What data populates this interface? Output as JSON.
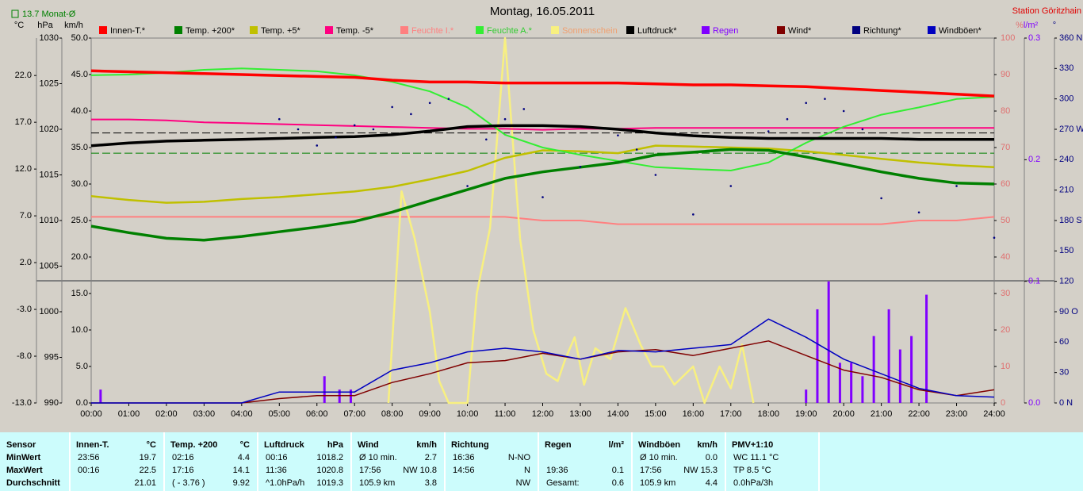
{
  "chart_data": {
    "type": "line",
    "title": "Montag, 16.05.2011",
    "station": "Station Göritzhain",
    "monthly_mean": {
      "value": 13.7,
      "label": "13.7 Monat-Ø",
      "color": "#008000"
    },
    "pressure_reference": 1019.6,
    "x": [
      0,
      1,
      2,
      3,
      4,
      5,
      6,
      7,
      8,
      9,
      10,
      11,
      12,
      13,
      14,
      15,
      16,
      17,
      18,
      19,
      20,
      21,
      22,
      23,
      24
    ],
    "xlim": [
      0,
      24
    ],
    "xticks": [
      {
        "value": 0,
        "label": "00:00"
      },
      {
        "value": 1,
        "label": "01:00"
      },
      {
        "value": 2,
        "label": "02:00"
      },
      {
        "value": 3,
        "label": "03:00"
      },
      {
        "value": 4,
        "label": "04:00"
      },
      {
        "value": 5,
        "label": "05:00"
      },
      {
        "value": 6,
        "label": "06:00"
      },
      {
        "value": 7,
        "label": "07:00"
      },
      {
        "value": 8,
        "label": "08:00"
      },
      {
        "value": 9,
        "label": "09:00"
      },
      {
        "value": 10,
        "label": "10:00"
      },
      {
        "value": 11,
        "label": "11:00"
      },
      {
        "value": 12,
        "label": "12:00"
      },
      {
        "value": 13,
        "label": "13:00"
      },
      {
        "value": 14,
        "label": "14:00"
      },
      {
        "value": 15,
        "label": "15:00"
      },
      {
        "value": 16,
        "label": "16:00"
      },
      {
        "value": 17,
        "label": "17:00"
      },
      {
        "value": 18,
        "label": "18:00"
      },
      {
        "value": 19,
        "label": "19:00"
      },
      {
        "value": 20,
        "label": "20:00"
      },
      {
        "value": 21,
        "label": "21:00"
      },
      {
        "value": 22,
        "label": "22:00"
      },
      {
        "value": 23,
        "label": "23:00"
      },
      {
        "value": 24,
        "label": "24:00"
      }
    ],
    "ylabel": "°C",
    "ylim": [
      -13,
      26
    ],
    "yticks": [
      {
        "value": 22,
        "label": "22.0"
      },
      {
        "value": 17,
        "label": "17.0"
      },
      {
        "value": 12,
        "label": "12.0"
      },
      {
        "value": 7,
        "label": "7.0"
      },
      {
        "value": 2,
        "label": "2.0"
      },
      {
        "value": -3,
        "label": "-3.0"
      },
      {
        "value": -8,
        "label": "-8.0"
      },
      {
        "value": -13,
        "label": "-13.0"
      }
    ],
    "y2label": "hPa",
    "y2lim": [
      990,
      1030
    ],
    "y2ticks": [
      1030,
      1025,
      1020,
      1015,
      1010,
      1005,
      1000,
      995,
      990
    ],
    "y3label": "km/h",
    "y3lim": [
      0,
      50
    ],
    "y3ticks": [
      {
        "value": 50,
        "label": "50.0"
      },
      {
        "value": 45,
        "label": "45.0"
      },
      {
        "value": 40,
        "label": "40.0"
      },
      {
        "value": 35,
        "label": "35.0"
      },
      {
        "value": 30,
        "label": "30.0"
      },
      {
        "value": 25,
        "label": "25.0"
      },
      {
        "value": 20,
        "label": "20.0"
      },
      {
        "value": 15,
        "label": "15.0"
      },
      {
        "value": 10,
        "label": "10.0"
      },
      {
        "value": 5,
        "label": "5.0"
      },
      {
        "value": 0,
        "label": "0.0"
      }
    ],
    "y4label": "%",
    "y4lim": [
      0,
      100
    ],
    "y4ticks": [
      100,
      90,
      80,
      70,
      60,
      50,
      40,
      30,
      20,
      10,
      0
    ],
    "y5label": "l/m²",
    "y5lim": [
      0,
      0.3
    ],
    "y5ticks": [
      0.3,
      0.2,
      0.1,
      {
        "value": 0,
        "label": "0.0"
      }
    ],
    "y6label": "°",
    "y6lim": [
      0,
      360
    ],
    "y6ticks": [
      {
        "value": 360,
        "label": "360 N"
      },
      330,
      300,
      {
        "value": 270,
        "label": "270 W"
      },
      240,
      210,
      {
        "value": 180,
        "label": "180 S"
      },
      150,
      120,
      {
        "value": 90,
        "label": "90 O"
      },
      60,
      30,
      {
        "value": 0,
        "label": "0 N"
      }
    ],
    "series": [
      {
        "name": "Innen-T.*",
        "color": "#ff0000",
        "axis": "y",
        "values": [
          22.5,
          22.4,
          22.3,
          22.2,
          22.1,
          22.0,
          21.9,
          21.8,
          21.5,
          21.3,
          21.3,
          21.2,
          21.2,
          21.2,
          21.2,
          21.1,
          21.0,
          21.0,
          20.9,
          20.8,
          20.6,
          20.4,
          20.2,
          20.0,
          19.8
        ]
      },
      {
        "name": "Temp. +200*",
        "color": "#008000",
        "axis": "y",
        "values": [
          5.9,
          5.2,
          4.6,
          4.4,
          4.8,
          5.3,
          5.8,
          6.4,
          7.4,
          8.6,
          9.8,
          11.0,
          11.7,
          12.2,
          12.7,
          13.5,
          13.8,
          14.1,
          14.0,
          13.3,
          12.5,
          11.7,
          11.0,
          10.5,
          10.4
        ]
      },
      {
        "name": "Temp. +5*",
        "color": "#c0c000",
        "axis": "y",
        "values": [
          9.1,
          8.7,
          8.4,
          8.5,
          8.8,
          9.0,
          9.3,
          9.6,
          10.1,
          10.9,
          11.8,
          13.2,
          14.0,
          13.9,
          13.7,
          14.5,
          14.4,
          14.3,
          14.2,
          13.9,
          13.5,
          13.1,
          12.7,
          12.4,
          12.2
        ]
      },
      {
        "name": "Temp. -5*",
        "color": "#ff0080",
        "axis": "y",
        "values": [
          17.3,
          17.3,
          17.2,
          17.0,
          16.9,
          16.8,
          16.7,
          16.6,
          16.5,
          16.4,
          16.3,
          16.3,
          16.2,
          16.3,
          16.3,
          16.4,
          16.4,
          16.4,
          16.4,
          16.4,
          16.4,
          16.4,
          16.4,
          16.4,
          16.4
        ]
      },
      {
        "name": "Feuchte I.*",
        "color": "#ff8080",
        "label_color": "#ff8080",
        "axis": "y4",
        "values": [
          51,
          51,
          51,
          51,
          51,
          51,
          51,
          51,
          51,
          51,
          51,
          51,
          50,
          50,
          49,
          49,
          49,
          49,
          49,
          49,
          49,
          49,
          50,
          50,
          51
        ]
      },
      {
        "name": "Feuchte A.*",
        "color": "#33ee33",
        "label_color": "#33cc33",
        "axis": "y4",
        "values": [
          89.8,
          90,
          90.5,
          91.3,
          91.7,
          91.3,
          90.9,
          89.8,
          88,
          85.4,
          81,
          73.5,
          70,
          68,
          66.3,
          64.6,
          64.1,
          63.7,
          65.9,
          71.3,
          75.7,
          79,
          81,
          83.3,
          83.9
        ]
      },
      {
        "name": "Sonnenschein",
        "color": "#f8f080",
        "label_color": "#f0a070",
        "axis": "y4",
        "type": "line",
        "x": [
          7.9,
          8.25,
          8.6,
          9.0,
          9.25,
          9.5,
          10.0,
          10.25,
          10.6,
          11.0,
          11.4,
          11.75,
          12.1,
          12.4,
          12.6,
          12.85,
          13.1,
          13.4,
          13.8,
          14.2,
          14.6,
          14.9,
          15.2,
          15.5,
          16.0,
          16.3,
          16.7,
          17.0,
          17.3,
          17.6
        ],
        "values": [
          0,
          58,
          45,
          25,
          6,
          0,
          0,
          30,
          48,
          100,
          45,
          20,
          8,
          6,
          12,
          18,
          5,
          15,
          12,
          26,
          16,
          10,
          10,
          5,
          10,
          0,
          10,
          4,
          16,
          0
        ]
      },
      {
        "name": "Luftdruck*",
        "color": "#000000",
        "axis": "y2",
        "values": [
          1018.2,
          1018.5,
          1018.7,
          1018.8,
          1018.9,
          1019.0,
          1019.1,
          1019.2,
          1019.4,
          1019.8,
          1020.3,
          1020.4,
          1020.4,
          1020.3,
          1020.0,
          1019.6,
          1019.3,
          1019.1,
          1019.0,
          1019.0,
          1019.0,
          1019.0,
          1018.9,
          1018.9,
          1018.9
        ]
      },
      {
        "name": "Regen",
        "color": "#8000ff",
        "label_color": "#8000ff",
        "axis": "y5",
        "type": "bar",
        "x": [
          0.25,
          6.2,
          6.6,
          6.9,
          19.0,
          19.3,
          19.6,
          19.9,
          20.2,
          20.5,
          20.8,
          21.2,
          21.5,
          21.8,
          22.2
        ],
        "values": [
          0.011,
          0.022,
          0.011,
          0.011,
          0.011,
          0.077,
          0.1,
          0.033,
          0.033,
          0.022,
          0.055,
          0.077,
          0.044,
          0.055,
          0.089
        ]
      },
      {
        "name": "Wind*",
        "color": "#800000",
        "axis": "y3",
        "values": [
          0,
          0,
          0,
          0,
          0,
          0.6,
          1.0,
          1.0,
          2.8,
          4.0,
          5.5,
          5.8,
          6.8,
          6.0,
          7.0,
          7.3,
          6.5,
          7.5,
          8.5,
          6.5,
          4.5,
          3.5,
          1.8,
          1.0,
          1.8
        ]
      },
      {
        "name": "Richtung*",
        "color": "#000080",
        "axis": "y6",
        "type": "scatter",
        "x": [
          5,
          5.5,
          6,
          6.5,
          7,
          7.5,
          8,
          8.5,
          9,
          9.5,
          10,
          10.5,
          11,
          11.5,
          12,
          13,
          14,
          14.5,
          15,
          16,
          17,
          18,
          18.5,
          19,
          19.5,
          20,
          20.5,
          21,
          22,
          23,
          24
        ],
        "values": [
          280,
          270,
          254,
          262,
          274,
          270,
          292,
          285,
          296,
          300,
          214,
          260,
          280,
          290,
          203,
          233,
          264,
          250,
          225,
          186,
          214,
          268,
          280,
          296,
          300,
          288,
          270,
          202,
          188,
          214,
          163
        ]
      },
      {
        "name": "Windböen*",
        "color": "#0000c0",
        "axis": "y3",
        "values": [
          0,
          0,
          0,
          0,
          0,
          1.5,
          1.5,
          1.5,
          4.5,
          5.5,
          7.0,
          7.5,
          7.0,
          6.0,
          7.2,
          7.0,
          7.5,
          8.0,
          11.5,
          9.0,
          6.0,
          4.0,
          2.0,
          1.0,
          0.8
        ]
      }
    ]
  },
  "table": {
    "columns": [
      {
        "header": "Sensor",
        "rows": [
          [
            "MinWert"
          ],
          [
            "MaxWert"
          ],
          [
            "Durchschnitt"
          ]
        ]
      },
      {
        "header": "Innen-T.",
        "unit": "°C",
        "rows": [
          [
            "23:56",
            "19.7"
          ],
          [
            "00:16",
            "22.5"
          ],
          [
            "21.01"
          ]
        ]
      },
      {
        "header": "Temp. +200",
        "unit": "°C",
        "rows": [
          [
            "02:16",
            "4.4"
          ],
          [
            "17:16",
            "14.1"
          ],
          [
            "( - 3.76 )",
            "9.92"
          ]
        ]
      },
      {
        "header": "Luftdruck",
        "unit": "hPa",
        "rows": [
          [
            "00:16",
            "1018.2"
          ],
          [
            "11:36",
            "1020.8"
          ],
          [
            "^1.0hPa/h",
            "1019.3"
          ]
        ]
      },
      {
        "header": "Wind",
        "unit": "km/h",
        "rows": [
          [
            "Ø 10 min.",
            "2.7"
          ],
          [
            "17:56",
            "NW 10.8"
          ],
          [
            "105.9 km",
            "3.8"
          ]
        ]
      },
      {
        "header": "Richtung",
        "rows": [
          [
            "16:36",
            "N-NO"
          ],
          [
            "14:56",
            "N"
          ],
          [
            "NW"
          ]
        ]
      },
      {
        "header": "Regen",
        "unit": "l/m²",
        "rows": [
          [],
          [
            "19:36",
            "0.1"
          ],
          [
            "Gesamt:",
            "0.6"
          ]
        ]
      },
      {
        "header": "Windböen",
        "unit": "km/h",
        "rows": [
          [
            "Ø 10 min.",
            "0.0"
          ],
          [
            "17:56",
            "NW 15.3"
          ],
          [
            "105.9 km",
            "4.4"
          ]
        ]
      },
      {
        "header": "PMV+1:10",
        "rows": [
          [
            "WC 11.1 °C"
          ],
          [
            "TP 8.5 °C"
          ],
          [
            "0.0hPa/3h"
          ]
        ]
      }
    ]
  }
}
